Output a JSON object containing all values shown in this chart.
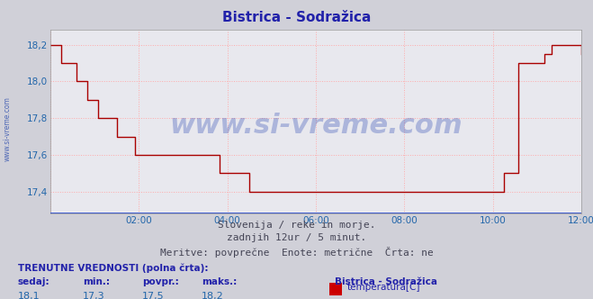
{
  "title": "Bistrica - Sodražica",
  "title_color": "#2222aa",
  "title_fontsize": 11,
  "bg_color": "#d0d0d8",
  "plot_bg_color": "#e8e8ee",
  "grid_color": "#ffaaaa",
  "grid_linestyle": ":",
  "line_color": "#aa0000",
  "line_width": 1.0,
  "x_label_color": "#2266aa",
  "y_label_color": "#2266aa",
  "xlim": [
    0,
    144
  ],
  "ylim": [
    17.28,
    18.28
  ],
  "yticks": [
    17.4,
    17.6,
    17.8,
    18.0,
    18.2
  ],
  "ytick_labels": [
    "17,4",
    "17,6",
    "17,8",
    "18,0",
    "18,2"
  ],
  "xticks": [
    0,
    24,
    48,
    72,
    96,
    120,
    144
  ],
  "xtick_labels": [
    "",
    "02:00",
    "04:00",
    "06:00",
    "08:00",
    "10:00",
    "12:00"
  ],
  "watermark_text": "www.si-vreme.com",
  "watermark_color": "#1133aa",
  "watermark_alpha": 0.28,
  "watermark_fontsize": 22,
  "footer_lines": [
    "Slovenija / reke in morje.",
    "zadnjih 12ur / 5 minut.",
    "Meritve: povprečne  Enote: metrične  Črta: ne"
  ],
  "footer_color": "#444455",
  "footer_fontsize": 8,
  "bottom_label_title": "TRENUTNE VREDNOSTI (polna črta):",
  "bottom_cols": [
    "sedaj:",
    "min.:",
    "povpr.:",
    "maks.:"
  ],
  "bottom_vals": [
    "18,1",
    "17,3",
    "17,5",
    "18,2"
  ],
  "bottom_station": "Bistrica - Sodražica",
  "bottom_series": "temperatura[C]",
  "bottom_series_color": "#cc0000",
  "sidewater_text": "www.si-vreme.com",
  "sidewater_color": "#2244aa",
  "y_data": [
    18.2,
    18.2,
    18.2,
    18.1,
    18.1,
    18.1,
    18.1,
    18.0,
    18.0,
    18.0,
    17.9,
    17.9,
    17.9,
    17.8,
    17.8,
    17.8,
    17.8,
    17.8,
    17.7,
    17.7,
    17.7,
    17.7,
    17.7,
    17.6,
    17.6,
    17.6,
    17.6,
    17.6,
    17.6,
    17.6,
    17.6,
    17.6,
    17.6,
    17.6,
    17.6,
    17.6,
    17.6,
    17.6,
    17.6,
    17.6,
    17.6,
    17.6,
    17.6,
    17.6,
    17.6,
    17.6,
    17.5,
    17.5,
    17.5,
    17.5,
    17.5,
    17.5,
    17.5,
    17.5,
    17.4,
    17.4,
    17.4,
    17.4,
    17.4,
    17.4,
    17.4,
    17.4,
    17.4,
    17.4,
    17.4,
    17.4,
    17.4,
    17.4,
    17.4,
    17.4,
    17.4,
    17.4,
    17.4,
    17.4,
    17.4,
    17.4,
    17.4,
    17.4,
    17.4,
    17.4,
    17.4,
    17.4,
    17.4,
    17.4,
    17.4,
    17.4,
    17.4,
    17.4,
    17.4,
    17.4,
    17.4,
    17.4,
    17.4,
    17.4,
    17.4,
    17.4,
    17.4,
    17.4,
    17.4,
    17.4,
    17.4,
    17.4,
    17.4,
    17.4,
    17.4,
    17.4,
    17.4,
    17.4,
    17.4,
    17.4,
    17.4,
    17.4,
    17.4,
    17.4,
    17.4,
    17.4,
    17.4,
    17.4,
    17.4,
    17.4,
    17.4,
    17.4,
    17.4,
    17.5,
    17.5,
    17.5,
    17.5,
    18.1,
    18.1,
    18.1,
    18.1,
    18.1,
    18.1,
    18.1,
    18.15,
    18.15,
    18.2,
    18.2,
    18.2,
    18.2,
    18.2,
    18.2,
    18.2,
    18.2,
    18.15
  ]
}
